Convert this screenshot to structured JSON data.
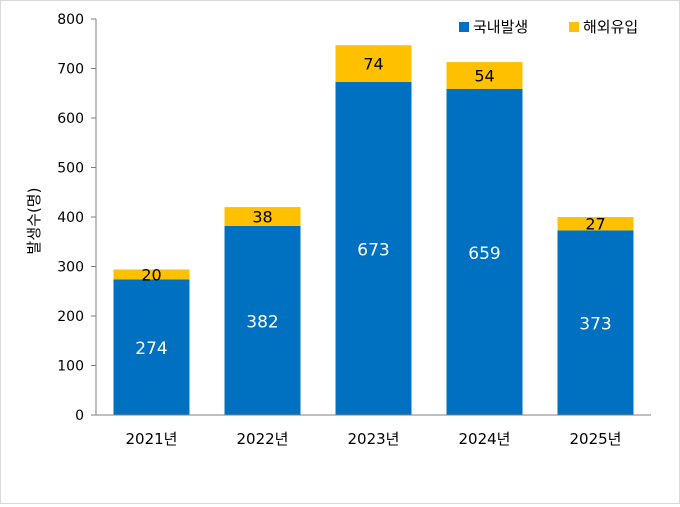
{
  "chart_data": {
    "type": "bar",
    "stacked": true,
    "categories": [
      "2021년",
      "2022년",
      "2023년",
      "2024년",
      "2025년"
    ],
    "series": [
      {
        "name": "국내발생",
        "values": [
          274,
          382,
          673,
          659,
          373
        ],
        "color": "#0070c0",
        "label_color": "#ffffff"
      },
      {
        "name": "해외유입",
        "values": [
          20,
          38,
          74,
          54,
          27
        ],
        "color": "#ffc000",
        "label_color": "#000000"
      }
    ],
    "ylabel": "발생수(명)",
    "ylim": [
      0,
      800
    ],
    "yticks": [
      0,
      100,
      200,
      300,
      400,
      500,
      600,
      700,
      800
    ],
    "grid": false,
    "legend_position": "top-right",
    "axis_color": "#7f7f7f"
  }
}
